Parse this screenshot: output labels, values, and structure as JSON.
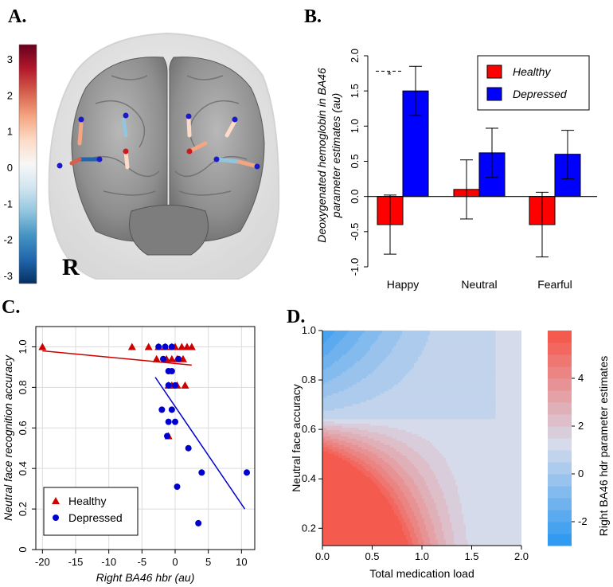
{
  "panels": {
    "a": {
      "label": "A.",
      "r_label": "R",
      "colorbar_ticks": [
        "3",
        "2",
        "1",
        "0",
        "-1",
        "-2",
        "-3"
      ],
      "colorbar_colors": [
        "#67001f",
        "#b2182b",
        "#d6604d",
        "#f4a582",
        "#fddbc7",
        "#f7f7f7",
        "#d1e5f0",
        "#92c5de",
        "#4393c3",
        "#2166ac",
        "#053061"
      ]
    },
    "b": {
      "label": "B."
    },
    "c": {
      "label": "C."
    },
    "d": {
      "label": "D."
    }
  },
  "chart_data": [
    {
      "type": "bar",
      "panel": "B",
      "categories": [
        "Happy",
        "Neutral",
        "Fearful"
      ],
      "series": [
        {
          "name": "Healthy",
          "color": "#ff0000",
          "values": [
            -0.4,
            0.1,
            -0.4
          ],
          "err_low": [
            -0.82,
            -0.32,
            -0.86
          ],
          "err_high": [
            0.02,
            0.52,
            0.06
          ]
        },
        {
          "name": "Depressed",
          "color": "#0000ff",
          "values": [
            1.5,
            0.62,
            0.6
          ],
          "err_low": [
            1.15,
            0.27,
            0.25
          ],
          "err_high": [
            1.85,
            0.97,
            0.94
          ]
        }
      ],
      "ylabel_line1": "Deoxygenated hemoglobin in BA46",
      "ylabel_line2": "parameter estimates (au)",
      "ylim": [
        -1.0,
        2.0
      ],
      "yticks": [
        "-1.0",
        "-0.5",
        "0.0",
        "0.5",
        "1.0",
        "1.5",
        "2.0"
      ],
      "significance": {
        "label": "*",
        "between": "Happy"
      },
      "legend": "top-right"
    },
    {
      "type": "scatter",
      "panel": "C",
      "xlabel": "Right BA46 hbr (au)",
      "ylabel": "Neutral face recognition accuracy",
      "xlim": [
        -21,
        12
      ],
      "ylim": [
        0,
        1.1
      ],
      "xticks": [
        "-20",
        "-15",
        "-10",
        "-5",
        "0",
        "5",
        "10"
      ],
      "yticks": [
        "0",
        "0.2",
        "0.4",
        "0.6",
        "0.8",
        "1.0"
      ],
      "legend": "bottom-left",
      "series": [
        {
          "name": "Healthy",
          "marker": "triangle",
          "color": "#cc0000",
          "points": [
            [
              -20,
              1.0
            ],
            [
              -6.5,
              1.0
            ],
            [
              -4,
              1.0
            ],
            [
              -2.5,
              1.0
            ],
            [
              -1.5,
              1.0
            ],
            [
              -0.5,
              1.0
            ],
            [
              0,
              1.0
            ],
            [
              1,
              1.0
            ],
            [
              1.8,
              1.0
            ],
            [
              2.5,
              1.0
            ],
            [
              -2.8,
              0.94
            ],
            [
              -1.3,
              0.94
            ],
            [
              -0.5,
              0.94
            ],
            [
              0.3,
              0.94
            ],
            [
              1.2,
              0.94
            ],
            [
              -1.0,
              0.81
            ],
            [
              -0.5,
              0.81
            ],
            [
              0.3,
              0.81
            ],
            [
              1.5,
              0.81
            ],
            [
              -1.0,
              0.56
            ]
          ],
          "fit": [
            [
              -20,
              0.98
            ],
            [
              2.5,
              0.91
            ]
          ]
        },
        {
          "name": "Depressed",
          "marker": "circle",
          "color": "#0000cc",
          "points": [
            [
              -2.5,
              1.0
            ],
            [
              -1.5,
              1.0
            ],
            [
              -0.5,
              1.0
            ],
            [
              -1.8,
              0.94
            ],
            [
              0.5,
              0.94
            ],
            [
              -1.0,
              0.88
            ],
            [
              -0.5,
              0.88
            ],
            [
              -1.0,
              0.81
            ],
            [
              0,
              0.81
            ],
            [
              -2.0,
              0.69
            ],
            [
              -0.5,
              0.69
            ],
            [
              -1.0,
              0.63
            ],
            [
              0,
              0.63
            ],
            [
              -1.2,
              0.56
            ],
            [
              2,
              0.5
            ],
            [
              0.3,
              0.31
            ],
            [
              4,
              0.38
            ],
            [
              10.8,
              0.38
            ],
            [
              3.5,
              0.13
            ]
          ],
          "fit": [
            [
              -3,
              0.85
            ],
            [
              10.5,
              0.2
            ]
          ]
        }
      ]
    },
    {
      "type": "heatmap",
      "panel": "D",
      "xlabel": "Total medication load",
      "ylabel": "Neutral face accuracy",
      "colorbar_label": "Right BA46 hdr parameter estimates",
      "xlim": [
        0.0,
        2.0
      ],
      "ylim": [
        0.13,
        1.0
      ],
      "xticks": [
        "0.0",
        "0.5",
        "1.0",
        "1.5",
        "2.0"
      ],
      "yticks": [
        "0.2",
        "0.4",
        "0.6",
        "0.8",
        "1.0"
      ],
      "colorbar_ticks": [
        "4",
        "2",
        "0",
        "-2"
      ],
      "zlim": [
        -3,
        6
      ],
      "contour_levels": [
        -3,
        -2.5,
        -2,
        -1.5,
        -1,
        -0.5,
        0,
        0.5,
        1,
        1.5,
        2,
        2.5,
        3,
        3.5,
        4,
        4.5,
        5,
        5.5,
        6
      ]
    }
  ]
}
